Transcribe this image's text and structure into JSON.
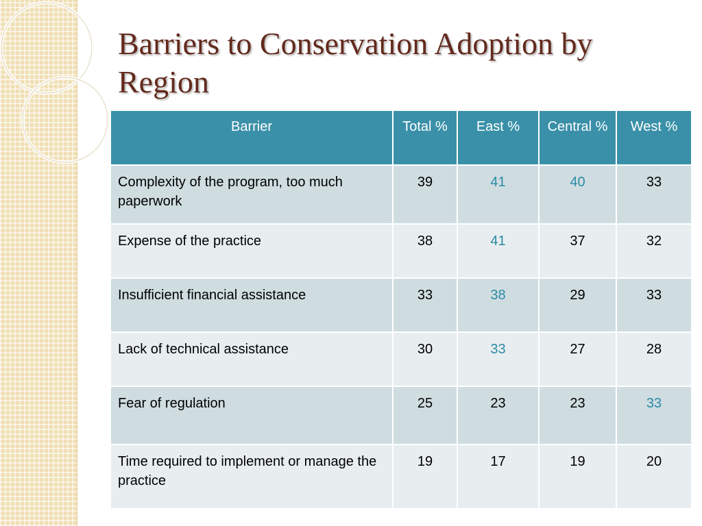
{
  "slide": {
    "title": "Barriers to Conservation Adoption by Region",
    "highlight_color": "#2b8aa5",
    "header_color": "#3a90a8",
    "title_color": "#632a1d"
  },
  "table": {
    "headers": {
      "barrier": "Barrier",
      "total": "Total %",
      "east": "East %",
      "central": "Central %",
      "west": "West %"
    },
    "rows": [
      {
        "barrier": "Complexity of the program,  too much paperwork",
        "total": "39",
        "east": "41",
        "central": "40",
        "west": "33",
        "highlighted": [
          "east",
          "central"
        ]
      },
      {
        "barrier": "Expense of the practice",
        "total": "38",
        "east": "41",
        "central": "37",
        "west": "32",
        "highlighted": [
          "east"
        ]
      },
      {
        "barrier": "Insufficient financial assistance",
        "total": "33",
        "east": "38",
        "central": "29",
        "west": "33",
        "highlighted": [
          "east"
        ]
      },
      {
        "barrier": "Lack of technical assistance",
        "total": "30",
        "east": "33",
        "central": "27",
        "west": "28",
        "highlighted": [
          "east"
        ]
      },
      {
        "barrier": "Fear of regulation",
        "total": "25",
        "east": "23",
        "central": "23",
        "west": "33",
        "highlighted": [
          "west"
        ]
      },
      {
        "barrier": "Time required to implement or manage the practice",
        "total": "19",
        "east": "17",
        "central": "19",
        "west": "20",
        "highlighted": []
      }
    ]
  }
}
